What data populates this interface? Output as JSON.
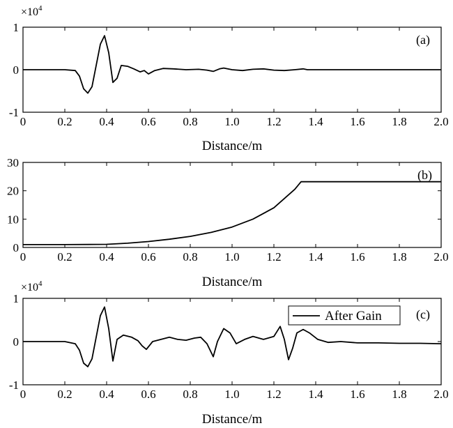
{
  "chart_data": [
    {
      "id": "a",
      "type": "line",
      "panel_label": "(a)",
      "xlabel": "Distance/m",
      "ylabel": "",
      "scale_label": "×10",
      "scale_exp": "4",
      "xlim": [
        0,
        2.0
      ],
      "ylim": [
        -1,
        1
      ],
      "xticks": [
        "0",
        "0.2",
        "0.4",
        "0.6",
        "0.8",
        "1.0",
        "1.2",
        "1.4",
        "1.6",
        "1.8",
        "2.0"
      ],
      "yticks": [
        "1",
        "0",
        "-1"
      ],
      "series": [
        {
          "x": [
            0,
            0.1,
            0.2,
            0.25,
            0.27,
            0.29,
            0.31,
            0.33,
            0.35,
            0.37,
            0.39,
            0.41,
            0.43,
            0.45,
            0.47,
            0.5,
            0.53,
            0.56,
            0.58,
            0.6,
            0.63,
            0.67,
            0.72,
            0.78,
            0.84,
            0.88,
            0.91,
            0.94,
            0.96,
            1.0,
            1.05,
            1.1,
            1.15,
            1.2,
            1.25,
            1.3,
            1.34,
            1.36,
            1.45,
            1.6,
            1.8,
            2.0
          ],
          "y": [
            0,
            0,
            0,
            -0.02,
            -0.15,
            -0.45,
            -0.55,
            -0.4,
            0.1,
            0.6,
            0.8,
            0.4,
            -0.3,
            -0.2,
            0.1,
            0.08,
            0.02,
            -0.05,
            -0.02,
            -0.1,
            -0.02,
            0.03,
            0.02,
            0.0,
            0.01,
            -0.01,
            -0.04,
            0.02,
            0.04,
            0.0,
            -0.02,
            0.01,
            0.02,
            -0.01,
            -0.02,
            0.0,
            0.02,
            0,
            0,
            0,
            0,
            0
          ]
        }
      ]
    },
    {
      "id": "b",
      "type": "line",
      "panel_label": "(b)",
      "xlabel": "Distance/m",
      "ylabel": "",
      "xlim": [
        0,
        2.0
      ],
      "ylim": [
        0,
        30
      ],
      "xticks": [
        "0",
        "0.2",
        "0.4",
        "0.6",
        "0.8",
        "1.0",
        "1.2",
        "1.4",
        "1.6",
        "1.8",
        "2.0"
      ],
      "yticks": [
        "30",
        "20",
        "10",
        "0"
      ],
      "series": [
        {
          "x": [
            0,
            0.2,
            0.4,
            0.5,
            0.6,
            0.7,
            0.8,
            0.9,
            1.0,
            1.1,
            1.2,
            1.3,
            1.33,
            1.5,
            1.8,
            2.0
          ],
          "y": [
            1,
            1,
            1.1,
            1.5,
            2.1,
            2.9,
            3.9,
            5.3,
            7.2,
            10.0,
            14.0,
            20.5,
            23.2,
            23.2,
            23.2,
            23.2
          ]
        }
      ]
    },
    {
      "id": "c",
      "type": "line",
      "panel_label": "(c)",
      "xlabel": "Distance/m",
      "ylabel": "",
      "scale_label": "×10",
      "scale_exp": "4",
      "xlim": [
        0,
        2.0
      ],
      "ylim": [
        -1,
        1
      ],
      "xticks": [
        "0",
        "0.2",
        "0.4",
        "0.6",
        "0.8",
        "1.0",
        "1.2",
        "1.4",
        "1.6",
        "1.8",
        "2.0"
      ],
      "yticks": [
        "1",
        "0",
        "-1"
      ],
      "legend": {
        "entries": [
          "After Gain"
        ],
        "placement": "top-right"
      },
      "series": [
        {
          "name": "After Gain",
          "x": [
            0,
            0.1,
            0.2,
            0.25,
            0.27,
            0.29,
            0.31,
            0.33,
            0.35,
            0.37,
            0.39,
            0.41,
            0.43,
            0.45,
            0.48,
            0.52,
            0.55,
            0.57,
            0.59,
            0.62,
            0.66,
            0.7,
            0.74,
            0.78,
            0.82,
            0.85,
            0.88,
            0.91,
            0.93,
            0.96,
            0.99,
            1.02,
            1.06,
            1.1,
            1.15,
            1.2,
            1.23,
            1.25,
            1.27,
            1.29,
            1.31,
            1.34,
            1.37,
            1.41,
            1.46,
            1.52,
            1.6,
            1.7,
            1.8,
            1.9,
            2.0
          ],
          "y": [
            0,
            0,
            0,
            -0.05,
            -0.2,
            -0.5,
            -0.58,
            -0.4,
            0.1,
            0.6,
            0.8,
            0.3,
            -0.45,
            0.05,
            0.15,
            0.1,
            0.02,
            -0.1,
            -0.18,
            0.0,
            0.05,
            0.1,
            0.05,
            0.03,
            0.08,
            0.1,
            -0.05,
            -0.35,
            0.0,
            0.3,
            0.2,
            -0.05,
            0.05,
            0.12,
            0.05,
            0.12,
            0.35,
            0.05,
            -0.42,
            -0.15,
            0.2,
            0.28,
            0.2,
            0.05,
            -0.02,
            0.0,
            -0.03,
            -0.03,
            -0.04,
            -0.04,
            -0.05
          ]
        }
      ]
    }
  ]
}
